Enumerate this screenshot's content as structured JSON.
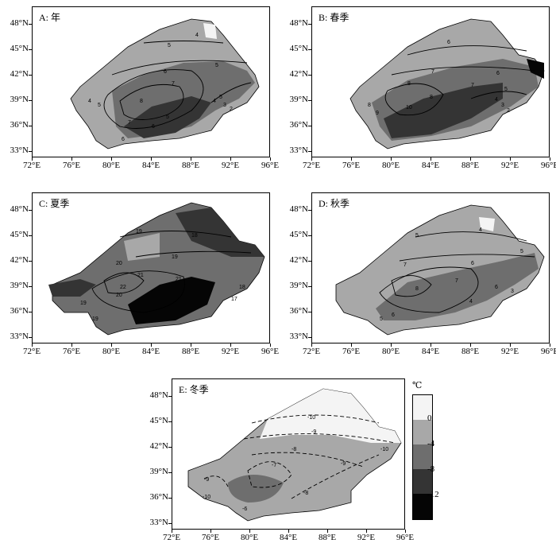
{
  "panels": [
    {
      "id": "A",
      "title": "A: 年"
    },
    {
      "id": "B",
      "title": "B: 春季"
    },
    {
      "id": "C",
      "title": "C: 夏季"
    },
    {
      "id": "D",
      "title": "D: 秋季"
    },
    {
      "id": "E",
      "title": "E: 冬季"
    }
  ],
  "axes": {
    "lat_labels": [
      "48°N",
      "45°N",
      "42°N",
      "39°N",
      "36°N",
      "33°N"
    ],
    "lon_labels": [
      "72°E",
      "76°E",
      "80°E",
      "84°E",
      "88°E",
      "92°E",
      "96°E"
    ]
  },
  "legend": {
    "unit": "℃",
    "labels": [
      "0",
      "-4",
      "-8",
      "-12"
    ],
    "colors": [
      "#f4f4f4",
      "#a8a8a8",
      "#6e6e6e",
      "#343434",
      "#050505"
    ]
  },
  "contour_labels": {
    "A": [
      "5",
      "4",
      "5",
      "6",
      "7",
      "8",
      "6",
      "4",
      "5",
      "3",
      "2",
      "7",
      "6",
      "5",
      "5",
      "4"
    ],
    "B": [
      "6",
      "7",
      "8",
      "7",
      "6",
      "5",
      "10",
      "8",
      "4",
      "3",
      "2",
      "9",
      "8"
    ],
    "C": [
      "19",
      "18",
      "20",
      "19",
      "21",
      "20",
      "22",
      "21",
      "19",
      "18",
      "17",
      "19"
    ],
    "D": [
      "4",
      "5",
      "6",
      "7",
      "8",
      "6",
      "5",
      "4",
      "3",
      "7",
      "6",
      "5"
    ],
    "E": [
      "-10",
      "-9",
      "-8",
      "-10",
      "-7",
      "-9",
      "-8",
      "-9",
      "-10",
      "-6"
    ]
  },
  "colors": {
    "shade_lightest": "#f4f4f4",
    "shade_light": "#a8a8a8",
    "shade_mid": "#6e6e6e",
    "shade_dark": "#343434",
    "shade_darkest": "#050505"
  }
}
